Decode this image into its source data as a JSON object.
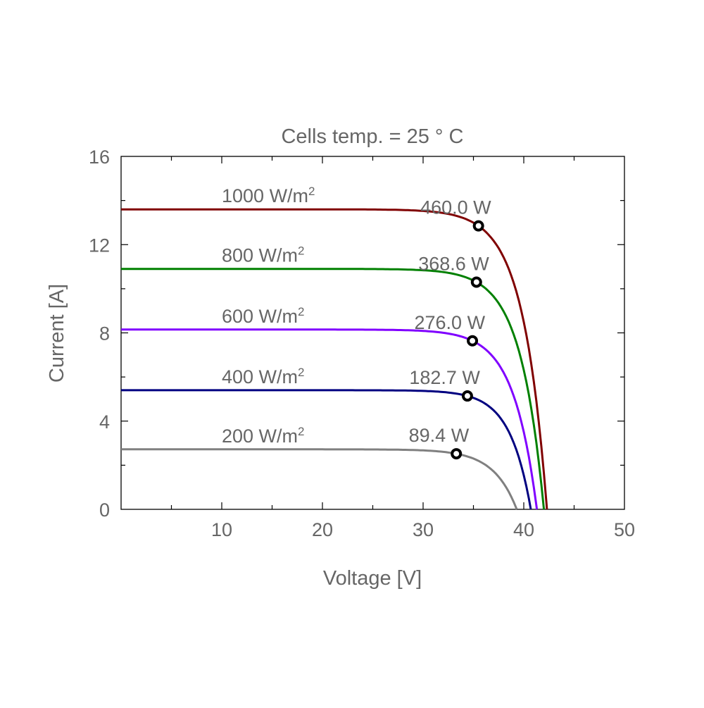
{
  "chart_data": {
    "type": "line",
    "title": "Cells temp. = 25 ° C",
    "xlabel": "Voltage [V]",
    "ylabel": "Current [A]",
    "xlim": [
      0,
      50
    ],
    "ylim": [
      0,
      16
    ],
    "xticks": [
      "10",
      "20",
      "30",
      "40",
      "50"
    ],
    "yticks": [
      "0",
      "4",
      "8",
      "12",
      "16"
    ],
    "grid": false,
    "series": [
      {
        "name": "1000 W/m2",
        "irradiance_label": "1000 W/m",
        "power_label": "460.0 W",
        "color": "#800000",
        "isc": 13.6,
        "voc": 42.3,
        "mpp_v": 35.5,
        "mpp_i": 12.85
      },
      {
        "name": "800 W/m2",
        "irradiance_label": "800 W/m",
        "power_label": "368.6 W",
        "color": "#008000",
        "isc": 10.9,
        "voc": 42.0,
        "mpp_v": 35.3,
        "mpp_i": 10.3
      },
      {
        "name": "600 W/m2",
        "irradiance_label": "600 W/m",
        "power_label": "276.0 W",
        "color": "#8000ff",
        "isc": 8.15,
        "voc": 41.3,
        "mpp_v": 34.9,
        "mpp_i": 7.64
      },
      {
        "name": "400 W/m2",
        "irradiance_label": "400 W/m",
        "power_label": "182.7 W",
        "color": "#000080",
        "isc": 5.4,
        "voc": 40.7,
        "mpp_v": 34.4,
        "mpp_i": 5.14
      },
      {
        "name": "200 W/m2",
        "irradiance_label": "200 W/m",
        "power_label": "89.4 W",
        "color": "#808080",
        "isc": 2.72,
        "voc": 39.3,
        "mpp_v": 33.3,
        "mpp_i": 2.52
      }
    ]
  }
}
